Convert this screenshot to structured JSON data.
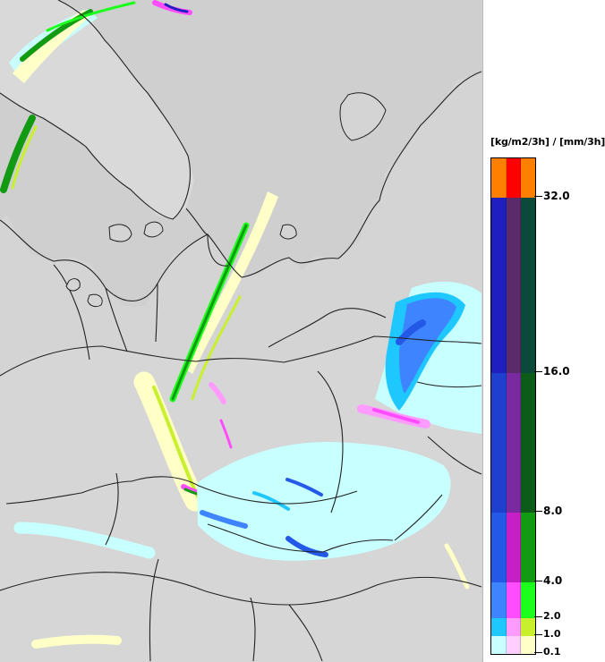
{
  "map": {
    "background": "#d4d4d4",
    "sea_color": "#c9c9c9",
    "boundary_color": "#222222"
  },
  "legend": {
    "unit_label": "[kg/m2/3h] / [mm/3h]",
    "labels": {
      "l32": "32.0",
      "l16": "16.0",
      "l8": "8.0",
      "l4": "4.0",
      "l2": "2.0",
      "l1": "1.0",
      "l01": "0.1"
    },
    "rows": [
      {
        "colors": [
          "#ff7f00",
          "#ff0000",
          "#ff7f00"
        ]
      },
      {
        "colors": [
          "#1f1fbf",
          "#5a2a6a",
          "#0b4a3a"
        ]
      },
      {
        "colors": [
          "#1f3fcf",
          "#7a2aa0",
          "#0c5b18"
        ]
      },
      {
        "colors": [
          "#2459e8",
          "#c51fc5",
          "#129a12"
        ]
      },
      {
        "colors": [
          "#3f84ff",
          "#ff4cff",
          "#1cff1c"
        ]
      },
      {
        "colors": [
          "#1ec8ff",
          "#ff9bff",
          "#c8f02d"
        ]
      },
      {
        "colors": [
          "#c8ffff",
          "#ffd0ff",
          "#ffffc8"
        ]
      }
    ]
  }
}
